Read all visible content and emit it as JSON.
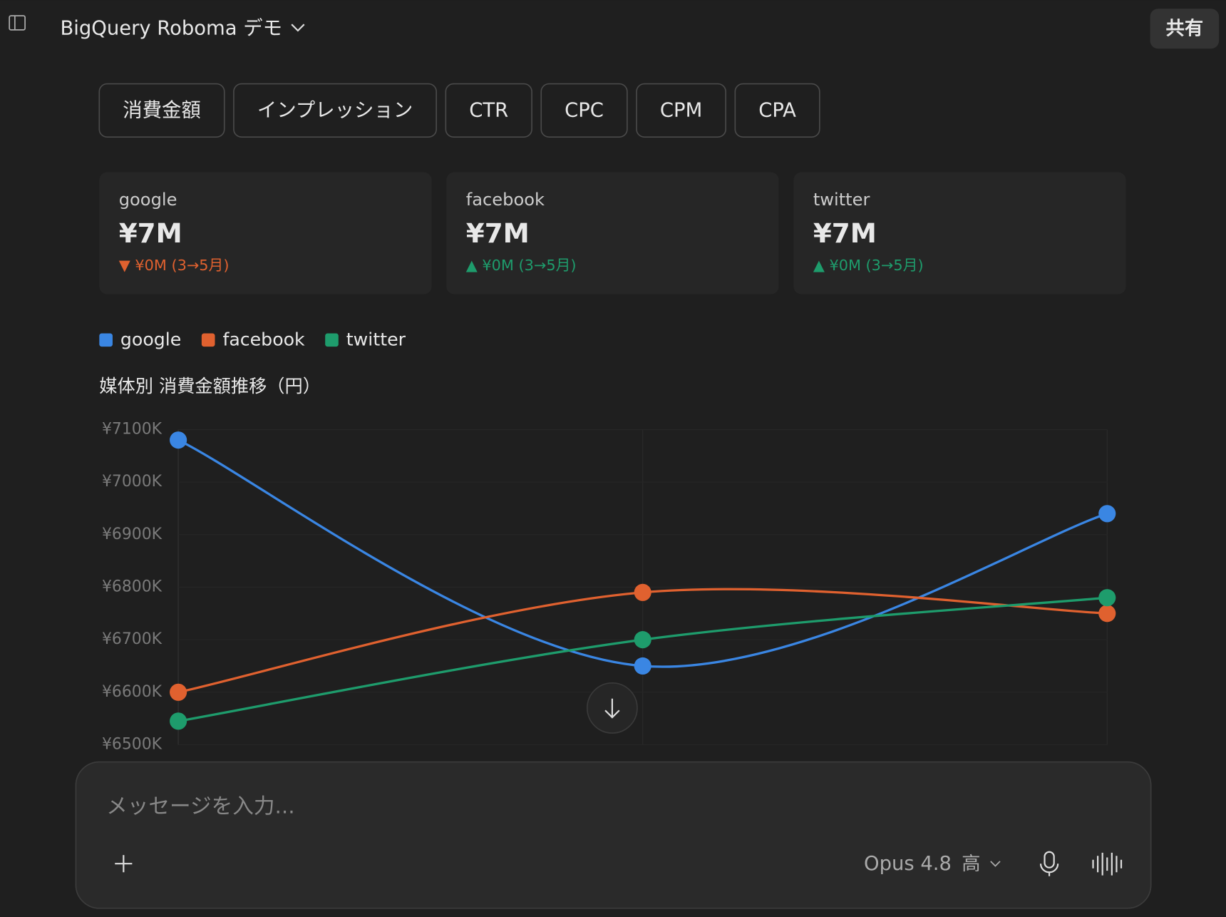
{
  "header": {
    "title": "BigQuery Roboma デモ",
    "share": "共有"
  },
  "tabs": [
    "消費金額",
    "インプレッション",
    "CTR",
    "CPC",
    "CPM",
    "CPA"
  ],
  "cards": [
    {
      "name": "google",
      "value": "¥7M",
      "change": "▼ ¥0M (3→5月)"
    },
    {
      "name": "facebook",
      "value": "¥7M",
      "change": "▲ ¥0M (3→5月)"
    },
    {
      "name": "twitter",
      "value": "¥7M",
      "change": "▲ ¥0M (3→5月)"
    }
  ],
  "chart_data": {
    "type": "line",
    "title": "媒体別 消費金額推移（円）",
    "categories": [
      null,
      null,
      null
    ],
    "series": [
      {
        "name": "google",
        "color": "#3a86e3",
        "values": [
          7080000,
          6650000,
          6940000
        ]
      },
      {
        "name": "facebook",
        "color": "#e0612f",
        "values": [
          6600000,
          6790000,
          6750000
        ]
      },
      {
        "name": "twitter",
        "color": "#1e9c6c",
        "values": [
          6545000,
          6700000,
          6780000
        ]
      }
    ],
    "ylim": [
      6500000,
      7100000
    ],
    "yticks": [
      {
        "value": 6500000,
        "label": "¥6500K"
      },
      {
        "value": 6600000,
        "label": "¥6600K"
      },
      {
        "value": 6700000,
        "label": "¥6700K"
      },
      {
        "value": 6800000,
        "label": "¥6800K"
      },
      {
        "value": 6900000,
        "label": "¥6900K"
      },
      {
        "value": 7000000,
        "label": "¥7000K"
      },
      {
        "value": 7100000,
        "label": "¥7100K"
      }
    ],
    "legend": "top-left"
  },
  "input": {
    "placeholder": "メッセージを入力...",
    "model": "Opus 4.8",
    "effort": "高"
  }
}
